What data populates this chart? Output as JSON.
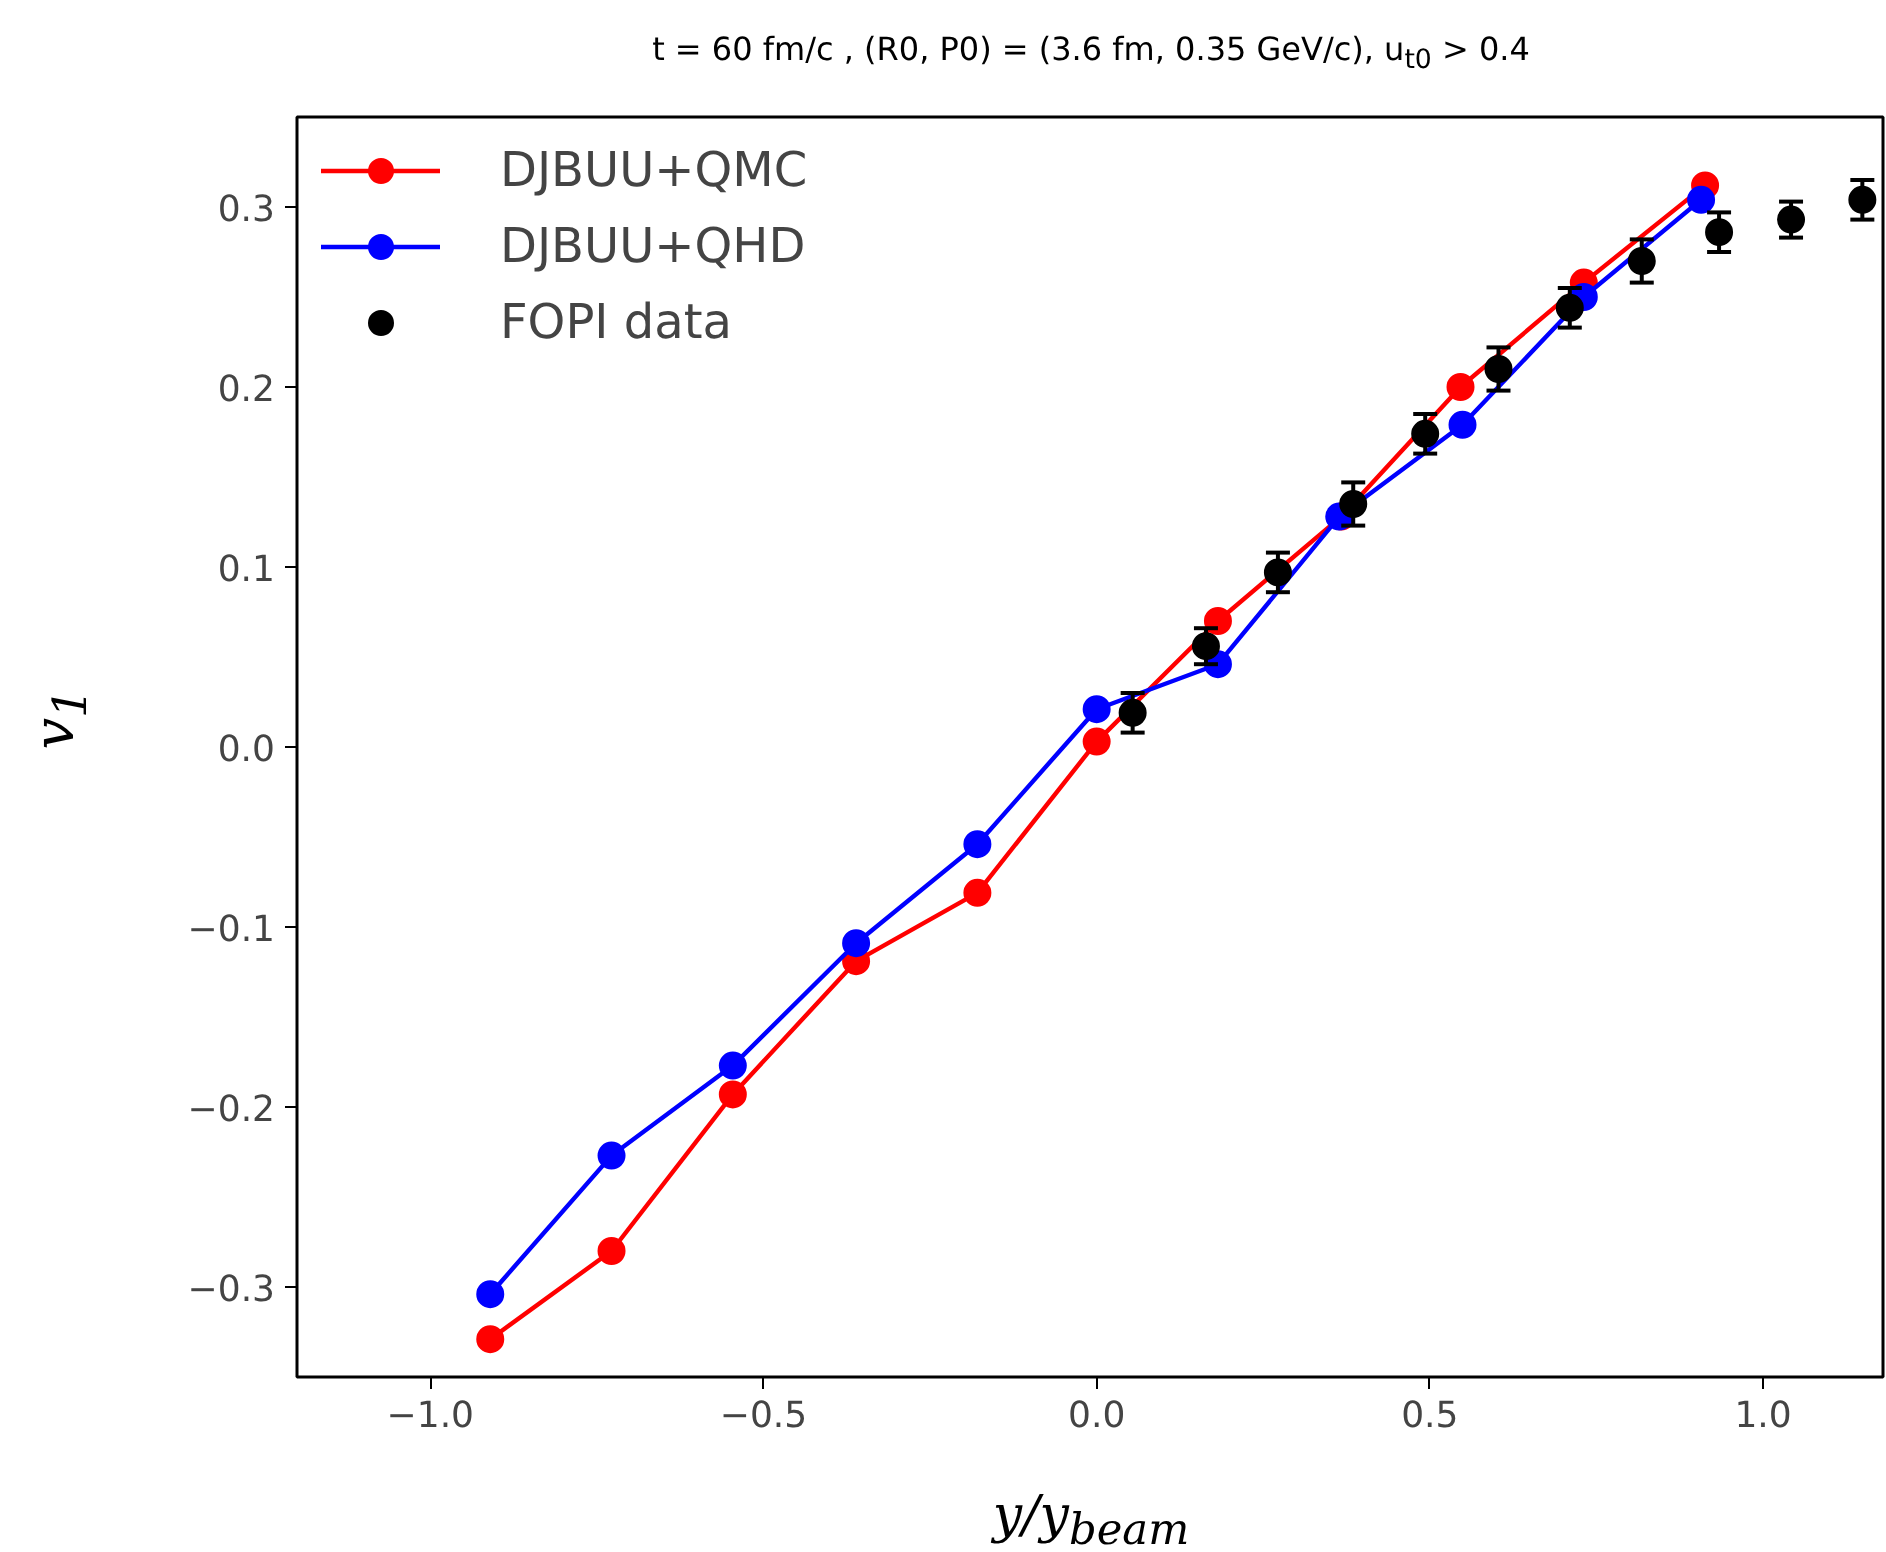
{
  "chart_data": {
    "type": "line",
    "title": "t = 60 fm/c , (R0, P0) = (3.6 fm, 0.35 GeV/c),  u$_{t0}$ > 0.4",
    "xlabel": "y/y$_{beam}$",
    "ylabel": "v$_{1}$",
    "xlim": [
      -1.2,
      1.18
    ],
    "ylim": [
      -0.35,
      0.35
    ],
    "xticks": [
      {
        "value": -1.0,
        "label": "−1.0"
      },
      {
        "value": -0.5,
        "label": "−0.5"
      },
      {
        "value": 0.0,
        "label": "0.0"
      },
      {
        "value": 0.5,
        "label": "0.5"
      },
      {
        "value": 1.0,
        "label": "1.0"
      }
    ],
    "yticks": [
      {
        "value": -0.3,
        "label": "−0.3"
      },
      {
        "value": -0.2,
        "label": "−0.2"
      },
      {
        "value": -0.1,
        "label": "−0.1"
      },
      {
        "value": 0.0,
        "label": "0.0"
      },
      {
        "value": 0.1,
        "label": "0.1"
      },
      {
        "value": 0.2,
        "label": "0.2"
      },
      {
        "value": 0.3,
        "label": "0.3"
      }
    ],
    "grid": false,
    "legend": "top left",
    "marker": "circle",
    "line_style": "solid",
    "series": [
      {
        "name": "DJBUU+QMC",
        "color": "#ff0000",
        "x": [
          -0.91,
          -0.728,
          -0.546,
          -0.361,
          -0.179,
          0.0,
          0.182,
          0.367,
          0.546,
          0.731,
          0.913
        ],
        "values": [
          -0.329,
          -0.28,
          -0.193,
          -0.119,
          -0.081,
          0.003,
          0.07,
          0.128,
          0.2,
          0.258,
          0.312
        ]
      },
      {
        "name": "DJBUU+QHD",
        "color": "#0000ff",
        "x": [
          -0.91,
          -0.728,
          -0.546,
          -0.361,
          -0.179,
          0.0,
          0.182,
          0.364,
          0.549,
          0.731,
          0.907
        ],
        "values": [
          -0.304,
          -0.227,
          -0.177,
          -0.109,
          -0.054,
          0.021,
          0.046,
          0.128,
          0.179,
          0.25,
          0.304
        ]
      },
      {
        "name": "FOPI data",
        "type": "scatter",
        "color": "#000000",
        "x": [
          0.054,
          0.164,
          0.272,
          0.385,
          0.493,
          0.603,
          0.71,
          0.818,
          0.934,
          1.042,
          1.149
        ],
        "values": [
          0.019,
          0.056,
          0.097,
          0.135,
          0.174,
          0.21,
          0.244,
          0.27,
          0.286,
          0.293,
          0.304
        ],
        "errors": [
          0.011,
          0.01,
          0.011,
          0.012,
          0.011,
          0.012,
          0.011,
          0.012,
          0.011,
          0.01,
          0.011
        ]
      }
    ]
  }
}
